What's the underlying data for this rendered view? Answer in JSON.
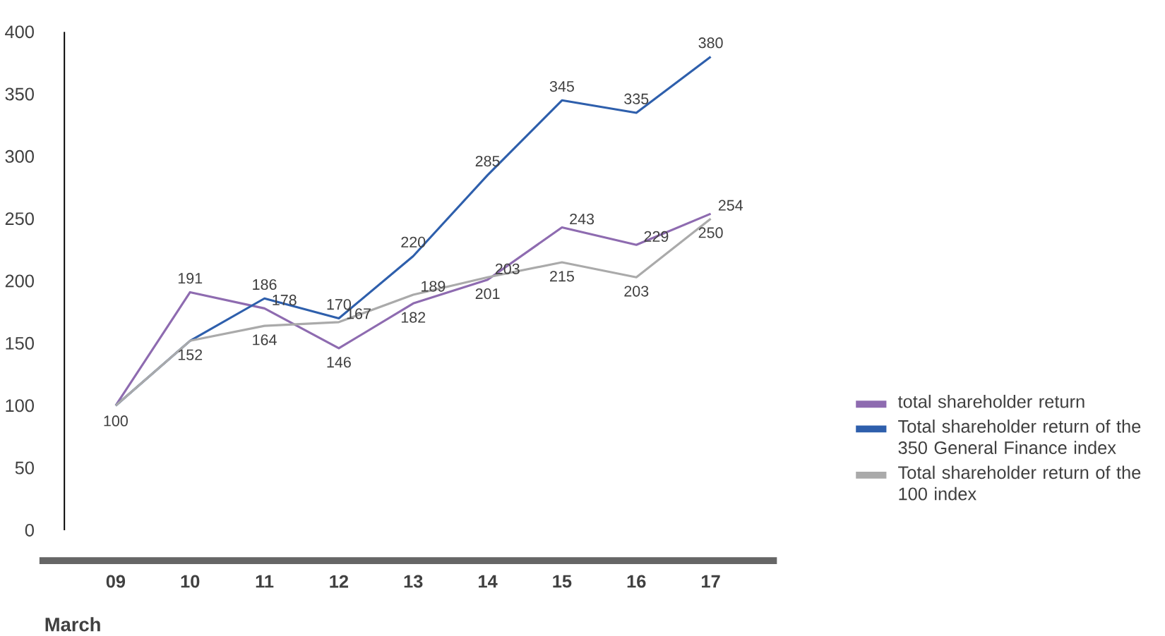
{
  "chart_data": {
    "type": "line",
    "xlabel": "March",
    "categories": [
      "09",
      "10",
      "11",
      "12",
      "13",
      "14",
      "15",
      "16",
      "17"
    ],
    "series": [
      {
        "name": "total shareholder return",
        "color": "#8e6bb0",
        "values": [
          100,
          191,
          178,
          146,
          182,
          201,
          243,
          229,
          254
        ],
        "value_labels": [
          "100",
          "191",
          "178",
          "146",
          "182",
          "201",
          "243",
          "229",
          "254"
        ]
      },
      {
        "name": "Total shareholder return of the 350 General Finance index",
        "color": "#2e5fac",
        "values": [
          100,
          152,
          186,
          170,
          220,
          285,
          345,
          335,
          380
        ],
        "value_labels": [
          null,
          "152",
          "186",
          "170",
          "220",
          "285",
          "345",
          "335",
          "380"
        ]
      },
      {
        "name": "Total shareholder return of the 100 index",
        "color": "#aaaaaa",
        "values": [
          100,
          152,
          164,
          167,
          189,
          203,
          215,
          203,
          250
        ],
        "value_labels": [
          null,
          null,
          "164",
          "167",
          "189",
          "203",
          "215",
          "203",
          "250"
        ]
      }
    ],
    "ylim": [
      0,
      400
    ],
    "yticks": [
      0,
      50,
      100,
      150,
      200,
      250,
      300,
      350,
      400
    ],
    "legend": "right",
    "grid": false,
    "marker": "none",
    "line_style": "solid"
  }
}
